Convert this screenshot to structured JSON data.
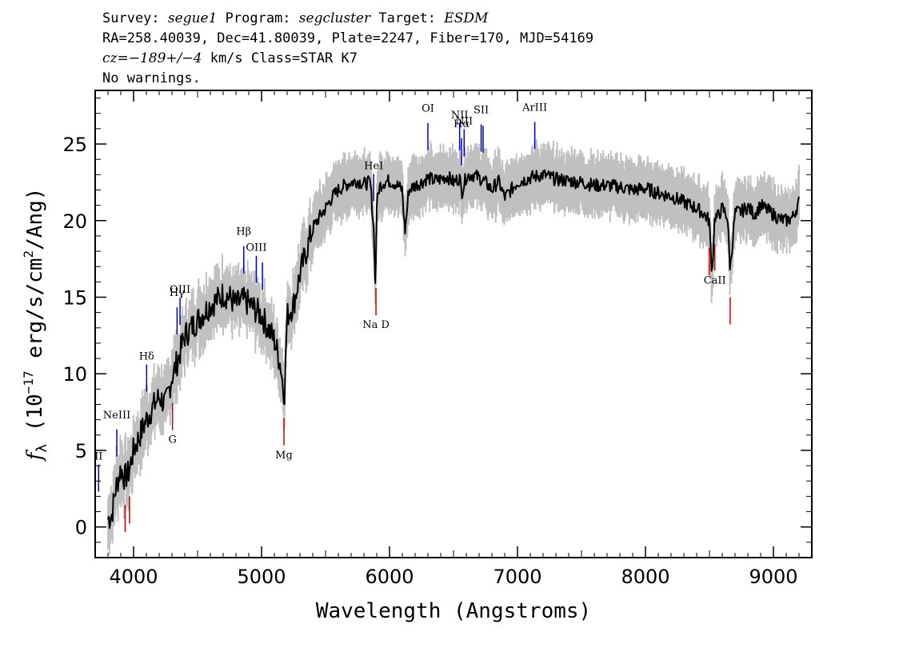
{
  "header": {
    "survey_label": "Survey:",
    "survey": "segue1",
    "program_label": "Program:",
    "program": "segcluster",
    "target_label": "Target:",
    "target": "ESDM",
    "line2": "RA=258.40039, Dec=41.80039, Plate=2247, Fiber=170, MJD=54169",
    "cz_prefix": "cz=",
    "cz_value": "−189+/−4",
    "cz_suffix": " km/s Class=STAR K7",
    "line4": "No warnings."
  },
  "colors": {
    "flux": "#000000",
    "error_band": "#c0c0c0",
    "emission_marker": "#0000cc",
    "absorption_marker": "#cc0000"
  },
  "chart_data": {
    "type": "line",
    "xlabel": "Wavelength (Angstroms)",
    "ylabel_parts": {
      "f": "f",
      "sub": "λ",
      "pre": " (10",
      "exp1": "−17",
      "mid": " erg/s/cm",
      "exp2": "2",
      "post": "/Ang)"
    },
    "xlim": [
      3700,
      9300
    ],
    "ylim": [
      -2,
      28.5
    ],
    "xticks": [
      4000,
      5000,
      6000,
      7000,
      8000,
      9000
    ],
    "yticks": [
      0,
      5,
      10,
      15,
      20,
      25
    ],
    "grid": false,
    "legend": "none",
    "series": [
      {
        "role": "flux",
        "x": [
          3800,
          3830,
          3860,
          3900,
          3930,
          3960,
          4000,
          4050,
          4100,
          4150,
          4200,
          4250,
          4300,
          4350,
          4400,
          4450,
          4500,
          4550,
          4600,
          4650,
          4700,
          4750,
          4800,
          4850,
          4900,
          4950,
          5000,
          5050,
          5100,
          5150,
          5170,
          5180,
          5190,
          5200,
          5250,
          5300,
          5350,
          5400,
          5450,
          5500,
          5550,
          5600,
          5650,
          5700,
          5750,
          5800,
          5850,
          5880,
          5890,
          5900,
          5920,
          5950,
          6000,
          6050,
          6100,
          6120,
          6130,
          6150,
          6200,
          6250,
          6300,
          6350,
          6400,
          6450,
          6500,
          6550,
          6563,
          6600,
          6650,
          6700,
          6750,
          6800,
          6850,
          6900,
          6950,
          7000,
          7100,
          7200,
          7300,
          7400,
          7500,
          7600,
          7700,
          7800,
          7900,
          8000,
          8100,
          8200,
          8300,
          8400,
          8450,
          8498,
          8520,
          8542,
          8560,
          8600,
          8640,
          8662,
          8700,
          8750,
          8800,
          8850,
          8900,
          8950,
          9000,
          9050,
          9100,
          9150,
          9200
        ],
        "y": [
          0.5,
          0.8,
          2.5,
          3.8,
          3.2,
          3.5,
          5.0,
          6.0,
          7.0,
          7.8,
          8.5,
          8.0,
          9.8,
          11.0,
          12.5,
          13.0,
          13.5,
          14.0,
          14.5,
          14.8,
          15.2,
          15.0,
          14.5,
          14.8,
          14.6,
          14.2,
          13.8,
          13.0,
          12.2,
          10.5,
          9.0,
          8.8,
          11.5,
          13.8,
          14.5,
          16.5,
          18.0,
          19.5,
          20.2,
          20.8,
          21.5,
          22.0,
          22.3,
          22.5,
          22.6,
          22.4,
          22.5,
          19.0,
          15.0,
          21.0,
          22.2,
          22.5,
          22.6,
          22.4,
          22.0,
          19.2,
          20.0,
          22.0,
          22.3,
          22.5,
          22.8,
          22.6,
          22.7,
          22.9,
          22.5,
          22.8,
          21.8,
          22.9,
          23.0,
          22.8,
          22.5,
          22.0,
          22.6,
          21.5,
          22.0,
          22.5,
          22.8,
          23.0,
          22.7,
          22.6,
          22.5,
          22.3,
          22.3,
          22.2,
          22.0,
          22.1,
          21.8,
          21.6,
          21.2,
          20.8,
          20.5,
          20.0,
          16.5,
          20.3,
          20.2,
          20.8,
          20.3,
          16.8,
          20.5,
          20.6,
          20.9,
          20.4,
          21.0,
          20.7,
          20.4,
          20.1,
          20.0,
          20.2,
          21.2
        ]
      }
    ],
    "error_halfwidth": 1.3,
    "line_markers": [
      {
        "label": "II",
        "x": 3727,
        "kind": "emission"
      },
      {
        "label": "NeIII",
        "x": 3869,
        "kind": "emission"
      },
      {
        "label": "Hδ",
        "x": 4102,
        "kind": "emission"
      },
      {
        "label": "Hγ",
        "x": 4340,
        "kind": "emission"
      },
      {
        "label": "OIII",
        "x": 4363,
        "kind": "emission"
      },
      {
        "label": "Hβ",
        "x": 4861,
        "kind": "emission"
      },
      {
        "label": "OIII",
        "x": 4959,
        "kind": "emission"
      },
      {
        "label": "",
        "x": 5007,
        "kind": "emission"
      },
      {
        "label": "HeI",
        "x": 5876,
        "kind": "emission"
      },
      {
        "label": "OI",
        "x": 6300,
        "kind": "emission"
      },
      {
        "label": "NII",
        "x": 6548,
        "kind": "emission"
      },
      {
        "label": "Hα",
        "x": 6563,
        "kind": "emission"
      },
      {
        "label": "NII",
        "x": 6583,
        "kind": "emission"
      },
      {
        "label": "SII",
        "x": 6716,
        "kind": "emission"
      },
      {
        "label": "",
        "x": 6731,
        "kind": "emission"
      },
      {
        "label": "ArIII",
        "x": 7135,
        "kind": "emission"
      },
      {
        "label": "",
        "x": 3934,
        "kind": "absorption"
      },
      {
        "label": "",
        "x": 3968,
        "kind": "absorption"
      },
      {
        "label": "G",
        "x": 4304,
        "kind": "absorption"
      },
      {
        "label": "Mg",
        "x": 5175,
        "kind": "absorption"
      },
      {
        "label": "Na D",
        "x": 5894,
        "kind": "absorption"
      },
      {
        "label": "",
        "x": 8498,
        "kind": "absorption"
      },
      {
        "label": "CaII",
        "x": 8542,
        "kind": "absorption"
      },
      {
        "label": "",
        "x": 8662,
        "kind": "absorption"
      }
    ]
  }
}
